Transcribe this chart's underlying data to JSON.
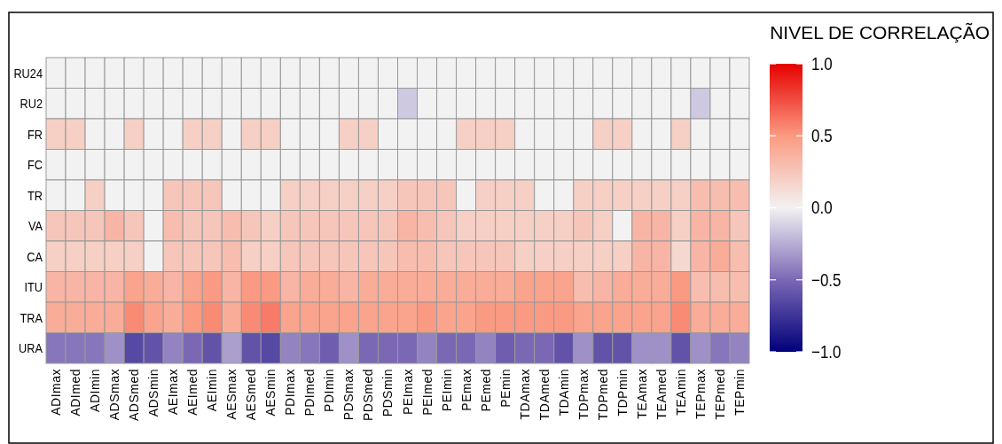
{
  "chart_data": {
    "type": "heatmap",
    "clabel": "NIVEL DE CORRELAÇÃO",
    "categories": [
      "ADImax",
      "ADImed",
      "ADImin",
      "ADSmax",
      "ADSmed",
      "ADSmin",
      "AEImax",
      "AEImed",
      "AEImin",
      "AESmax",
      "AESmed",
      "AESmin",
      "PDImax",
      "PDImed",
      "PDImin",
      "PDSmax",
      "PDSmed",
      "PDSmin",
      "PEImax",
      "PEImed",
      "PEImin",
      "PEmax",
      "PEmed",
      "PEmin",
      "TDAmax",
      "TDAmed",
      "TDAmin",
      "TDPmax",
      "TDPmed",
      "TDPmin",
      "TEAmax",
      "TEAmed",
      "TEAmin",
      "TEPmax",
      "TEPmed",
      "TEPmin"
    ],
    "y_categories": [
      "RU24",
      "RU2",
      "FR",
      "FC",
      "TR",
      "VA",
      "CA",
      "ITU",
      "TRA",
      "URA"
    ],
    "cells": [
      [
        0,
        0,
        0,
        0,
        0,
        0,
        0,
        0,
        0,
        0,
        0,
        0,
        0,
        0,
        0,
        0,
        0,
        0,
        0,
        0,
        0,
        0,
        0,
        0,
        0,
        0,
        0,
        0,
        0,
        0,
        0,
        0,
        0,
        0,
        0,
        0
      ],
      [
        0,
        0,
        0,
        0,
        0,
        0,
        0,
        0,
        0,
        0,
        0,
        0,
        0,
        0,
        0,
        0,
        0,
        0,
        -0.15,
        0,
        0,
        0,
        0,
        0,
        0,
        0,
        0,
        0,
        0,
        0,
        0,
        0,
        0,
        -0.15,
        0,
        0
      ],
      [
        0.2,
        0.2,
        0,
        0,
        0.2,
        0,
        0,
        0.2,
        0.2,
        0,
        0.2,
        0.2,
        0,
        0,
        0,
        0.2,
        0.2,
        0,
        0,
        0,
        0,
        0.2,
        0.2,
        0.2,
        0,
        0,
        0,
        0,
        0.2,
        0.2,
        0,
        0,
        0.2,
        0,
        0,
        0
      ],
      [
        0,
        0,
        0,
        0,
        0,
        0,
        0,
        0,
        0,
        0,
        0,
        0,
        0,
        0,
        0,
        0,
        0,
        0,
        0,
        0,
        0,
        0,
        0,
        0,
        0,
        0,
        0,
        0,
        0,
        0,
        0,
        0,
        0,
        0,
        0,
        0
      ],
      [
        0,
        0,
        0.2,
        0,
        0,
        0,
        0.25,
        0.25,
        0.25,
        0,
        0,
        0,
        0.2,
        0.2,
        0.2,
        0.2,
        0.2,
        0.2,
        0.25,
        0.25,
        0.25,
        0,
        0.2,
        0.2,
        0.2,
        0,
        0,
        0.2,
        0.2,
        0.2,
        0.2,
        0.2,
        0.2,
        0.3,
        0.3,
        0.3
      ],
      [
        0.25,
        0.25,
        0.25,
        0.35,
        0.25,
        0,
        0.3,
        0.25,
        0.25,
        0.3,
        0.25,
        0.2,
        0.25,
        0.25,
        0.25,
        0.25,
        0.25,
        0.25,
        0.35,
        0.3,
        0.25,
        0.2,
        0.2,
        0.2,
        0.2,
        0.2,
        0.2,
        0.25,
        0.2,
        0,
        0.35,
        0.35,
        0.2,
        0.35,
        0.35,
        0.25
      ],
      [
        0.2,
        0.2,
        0.2,
        0.2,
        0.2,
        0,
        0.25,
        0.25,
        0.25,
        0.3,
        0.2,
        0.2,
        0.25,
        0.25,
        0.25,
        0.25,
        0.25,
        0.25,
        0.3,
        0.3,
        0.25,
        0.25,
        0.25,
        0.25,
        0.2,
        0.2,
        0.2,
        0.2,
        0.2,
        0.2,
        0.35,
        0.35,
        0.15,
        0.35,
        0.4,
        0.3
      ],
      [
        0.35,
        0.35,
        0.35,
        0.35,
        0.45,
        0.4,
        0.35,
        0.45,
        0.5,
        0.35,
        0.5,
        0.5,
        0.35,
        0.4,
        0.4,
        0.35,
        0.4,
        0.4,
        0.4,
        0.4,
        0.4,
        0.4,
        0.4,
        0.4,
        0.45,
        0.45,
        0.45,
        0.3,
        0.35,
        0.4,
        0.4,
        0.4,
        0.5,
        0.3,
        0.3,
        0.3
      ],
      [
        0.4,
        0.4,
        0.4,
        0.4,
        0.55,
        0.45,
        0.4,
        0.5,
        0.55,
        0.4,
        0.55,
        0.6,
        0.45,
        0.45,
        0.45,
        0.45,
        0.45,
        0.45,
        0.45,
        0.5,
        0.45,
        0.45,
        0.5,
        0.5,
        0.5,
        0.5,
        0.5,
        0.45,
        0.45,
        0.45,
        0.45,
        0.45,
        0.55,
        0.4,
        0.4,
        0.4
      ],
      [
        -0.45,
        -0.45,
        -0.45,
        -0.35,
        -0.65,
        -0.6,
        -0.4,
        -0.5,
        -0.6,
        -0.3,
        -0.6,
        -0.65,
        -0.4,
        -0.45,
        -0.55,
        -0.35,
        -0.5,
        -0.5,
        -0.5,
        -0.4,
        -0.5,
        -0.5,
        -0.4,
        -0.55,
        -0.5,
        -0.5,
        -0.6,
        -0.35,
        -0.6,
        -0.6,
        -0.35,
        -0.35,
        -0.6,
        -0.35,
        -0.45,
        -0.4
      ]
    ],
    "clim": [
      -1,
      1
    ],
    "cticks": [
      {
        "value": 1,
        "label": "1.0"
      },
      {
        "value": 0.5,
        "label": "0.5"
      },
      {
        "value": 0,
        "label": "0.0"
      },
      {
        "value": -0.5,
        "label": "−0.5"
      },
      {
        "value": -1,
        "label": "−1.0"
      }
    ]
  }
}
